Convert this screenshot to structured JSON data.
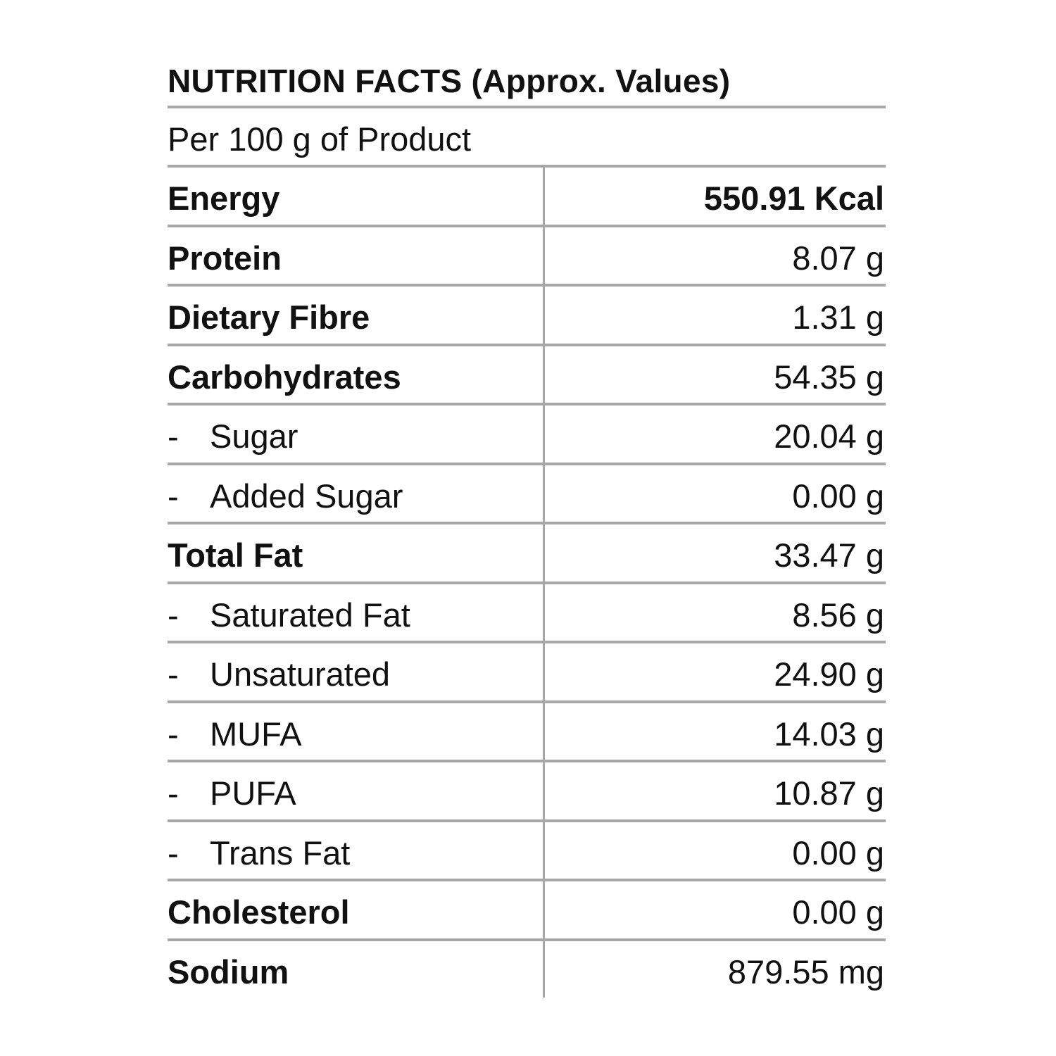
{
  "title": "NUTRITION FACTS (Approx. Values)",
  "subtitle": "Per 100 g of Product",
  "rows": [
    {
      "label": "Energy",
      "value": "550.91 Kcal",
      "level": "main",
      "value_bold": true
    },
    {
      "label": "Protein",
      "value": "8.07 g",
      "level": "main",
      "value_bold": false
    },
    {
      "label": "Dietary Fibre",
      "value": "1.31 g",
      "level": "main",
      "value_bold": false
    },
    {
      "label": "Carbohydrates",
      "value": "54.35 g",
      "level": "main",
      "value_bold": false
    },
    {
      "label": "Sugar",
      "value": "20.04 g",
      "level": "sub",
      "value_bold": false
    },
    {
      "label": "Added Sugar",
      "value": "0.00 g",
      "level": "sub",
      "value_bold": false
    },
    {
      "label": "Total Fat",
      "value": "33.47 g",
      "level": "main",
      "value_bold": false
    },
    {
      "label": "Saturated Fat",
      "value": "8.56 g",
      "level": "sub",
      "value_bold": false
    },
    {
      "label": "Unsaturated",
      "value": "24.90 g",
      "level": "sub",
      "value_bold": false
    },
    {
      "label": "MUFA",
      "value": "14.03 g",
      "level": "sub",
      "value_bold": false
    },
    {
      "label": "PUFA",
      "value": "10.87 g",
      "level": "sub",
      "value_bold": false
    },
    {
      "label": "Trans Fat",
      "value": "0.00 g",
      "level": "sub",
      "value_bold": false
    },
    {
      "label": "Cholesterol",
      "value": "0.00 g",
      "level": "main",
      "value_bold": false
    },
    {
      "label": "Sodium",
      "value": "879.55 mg",
      "level": "main",
      "value_bold": false
    }
  ],
  "sub_prefix": "-",
  "colors": {
    "rule": "#a7a7a7",
    "text": "#111111",
    "background": "#ffffff"
  }
}
